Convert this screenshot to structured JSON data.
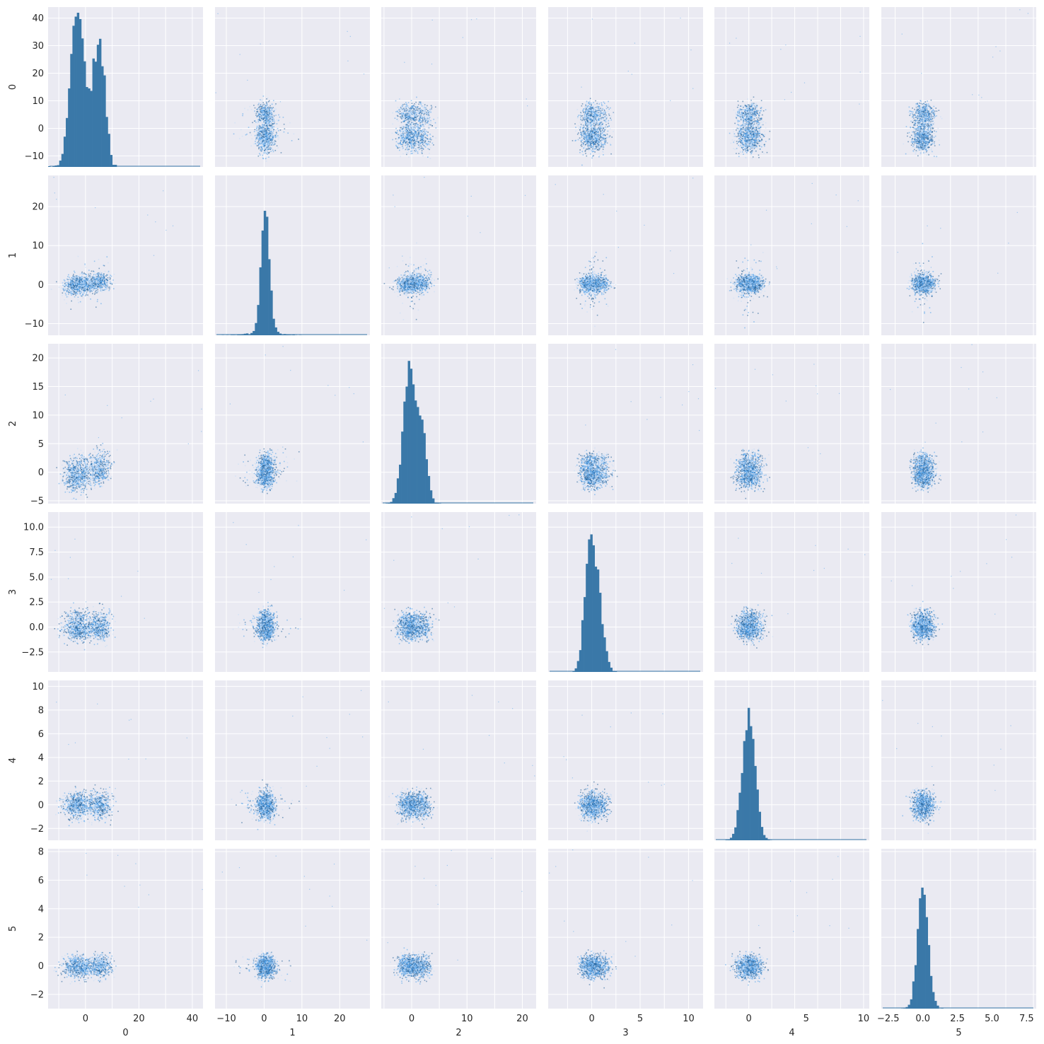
{
  "chart_data": {
    "type": "pairplot",
    "variables": [
      "0",
      "1",
      "2",
      "3",
      "4",
      "5"
    ],
    "diagonal_kind": "histogram",
    "offdiagonal_kind": "2d-histogram",
    "grid": true,
    "colors": {
      "background": "#eaeaf2",
      "gridline": "#ffffff",
      "histogram": "#3a78a8",
      "density_light": "#c4dcf7",
      "density_mid": "#4ea1ea",
      "density_dark": "#1f5d96"
    },
    "axes": [
      {
        "name": "0",
        "label": "0",
        "lim": [
          -14,
          44
        ],
        "ticks": [
          -10,
          0,
          10,
          20,
          30,
          40
        ],
        "xtick_labels": [
          "0",
          "20",
          "40"
        ],
        "xticks": [
          0,
          20,
          40
        ],
        "ytick_labels": [
          "−10",
          "0",
          "10",
          "20",
          "30",
          "40"
        ]
      },
      {
        "name": "1",
        "label": "1",
        "lim": [
          -13,
          28
        ],
        "ticks": [
          -10,
          0,
          10,
          20
        ],
        "xtick_labels": [
          "−10",
          "0",
          "10",
          "20"
        ],
        "xticks": [
          -10,
          0,
          10,
          20
        ],
        "ytick_labels": [
          "−10",
          "0",
          "10",
          "20"
        ]
      },
      {
        "name": "2",
        "label": "2",
        "lim": [
          -5.5,
          22.5
        ],
        "ticks": [
          -5,
          0,
          5,
          10,
          15,
          20
        ],
        "xtick_labels": [
          "0",
          "10",
          "20"
        ],
        "xticks": [
          0,
          10,
          20
        ],
        "ytick_labels": [
          "−5",
          "0",
          "5",
          "10",
          "15",
          "20"
        ]
      },
      {
        "name": "3",
        "label": "3",
        "lim": [
          -4.5,
          11.5
        ],
        "ticks": [
          -2.5,
          0,
          2.5,
          5,
          7.5,
          10
        ],
        "xtick_labels": [
          "0",
          "5",
          "10"
        ],
        "xticks": [
          0,
          5,
          10
        ],
        "ytick_labels": [
          "−2.5",
          "0.0",
          "2.5",
          "5.0",
          "7.5",
          "10.0"
        ]
      },
      {
        "name": "4",
        "label": "4",
        "lim": [
          -3,
          10.5
        ],
        "ticks": [
          -2,
          0,
          2,
          4,
          6,
          8,
          10
        ],
        "xtick_labels": [
          "0",
          "5",
          "10"
        ],
        "xticks": [
          0,
          5,
          10
        ],
        "ytick_labels": [
          "−2",
          "0",
          "2",
          "4",
          "6",
          "8",
          "10"
        ]
      },
      {
        "name": "5",
        "label": "5",
        "lim": [
          -3,
          8.2
        ],
        "ticks": [
          -2,
          0,
          2,
          4,
          6,
          8
        ],
        "xtick_labels": [
          "−2.5",
          "0.0",
          "2.5",
          "5.0",
          "7.5"
        ],
        "xticks": [
          -2.5,
          0,
          2.5,
          5,
          7.5
        ],
        "ytick_labels": [
          "−2",
          "0",
          "2",
          "4",
          "6",
          "8"
        ]
      }
    ],
    "diagonal_histograms": [
      {
        "variable": "0",
        "max_count_axis": 40,
        "modes": [
          -3,
          5
        ],
        "peak_heights": [
          41,
          24
        ]
      },
      {
        "variable": "1",
        "max_count_axis": 20,
        "modes": [
          0.3
        ],
        "peak_heights": [
          18.5
        ]
      },
      {
        "variable": "2",
        "max_count_axis": 20,
        "modes": [
          -0.5,
          1.8
        ],
        "peak_heights": [
          16,
          9
        ]
      },
      {
        "variable": "3",
        "max_count_axis": 10,
        "modes": [
          -0.3,
          0.6
        ],
        "peak_heights": [
          8.6,
          6.5
        ]
      },
      {
        "variable": "4",
        "max_count_axis": 10,
        "modes": [
          0
        ],
        "peak_heights": [
          6.8
        ]
      },
      {
        "variable": "5",
        "max_count_axis": 8,
        "modes": [
          0
        ],
        "peak_heights": [
          4.8
        ]
      }
    ]
  }
}
